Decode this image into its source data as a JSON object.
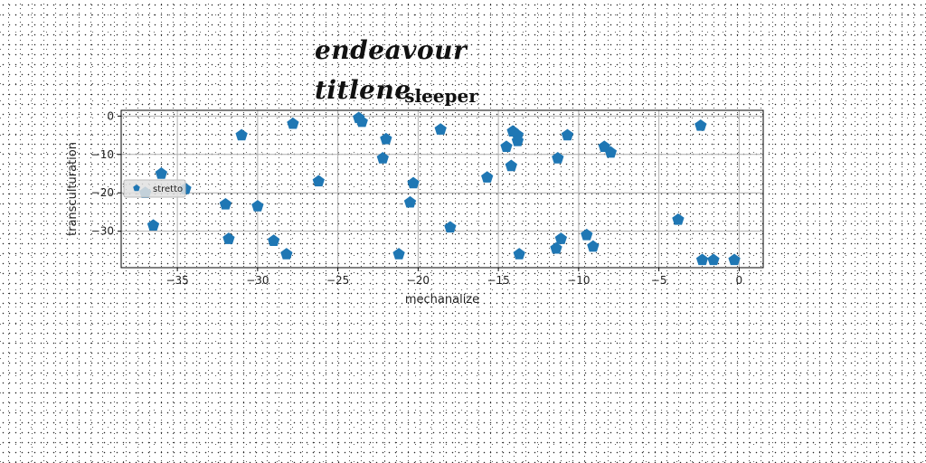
{
  "page": {
    "title": "endeavour titlene"
  },
  "chart_data": {
    "type": "scatter",
    "title": "sleeper",
    "xlabel": "mechanalize",
    "ylabel": "transculturation",
    "xlim": [
      -38.5,
      1.5
    ],
    "ylim": [
      -39.5,
      1.5
    ],
    "xticks": [
      -35,
      -30,
      -25,
      -20,
      -15,
      -10,
      -5,
      0
    ],
    "yticks": [
      0,
      -10,
      -20,
      -30
    ],
    "grid": true,
    "legend_position": "center-left",
    "marker": "pentagon",
    "series": [
      {
        "name": "stretto",
        "color": "#1f77b4",
        "points": [
          [
            -36.0,
            -15.0
          ],
          [
            -37.0,
            -20.0
          ],
          [
            -36.5,
            -28.5
          ],
          [
            -34.5,
            -19.0
          ],
          [
            -31.0,
            -5.0
          ],
          [
            -32.0,
            -23.0
          ],
          [
            -31.8,
            -32.0
          ],
          [
            -30.0,
            -23.5
          ],
          [
            -29.0,
            -32.5
          ],
          [
            -28.2,
            -36.0
          ],
          [
            -27.8,
            -2.0
          ],
          [
            -26.2,
            -17.0
          ],
          [
            -23.7,
            -0.5
          ],
          [
            -23.5,
            -1.5
          ],
          [
            -22.2,
            -11.0
          ],
          [
            -22.0,
            -6.0
          ],
          [
            -21.2,
            -36.0
          ],
          [
            -20.5,
            -22.5
          ],
          [
            -20.3,
            -17.5
          ],
          [
            -18.6,
            -3.5
          ],
          [
            -18.0,
            -29.0
          ],
          [
            -15.7,
            -16.0
          ],
          [
            -14.5,
            -8.0
          ],
          [
            -14.2,
            -13.0
          ],
          [
            -14.1,
            -4.0
          ],
          [
            -13.8,
            -5.0
          ],
          [
            -13.8,
            -6.5
          ],
          [
            -13.7,
            -36.0
          ],
          [
            -11.4,
            -34.5
          ],
          [
            -11.3,
            -11.0
          ],
          [
            -11.1,
            -32.0
          ],
          [
            -10.7,
            -5.0
          ],
          [
            -9.5,
            -31.0
          ],
          [
            -9.1,
            -34.0
          ],
          [
            -8.4,
            -8.0
          ],
          [
            -8.0,
            -9.5
          ],
          [
            -3.8,
            -27.0
          ],
          [
            -2.4,
            -2.5
          ],
          [
            -2.3,
            -37.5
          ],
          [
            -1.6,
            -37.5
          ],
          [
            -0.3,
            -37.5
          ]
        ]
      }
    ]
  }
}
